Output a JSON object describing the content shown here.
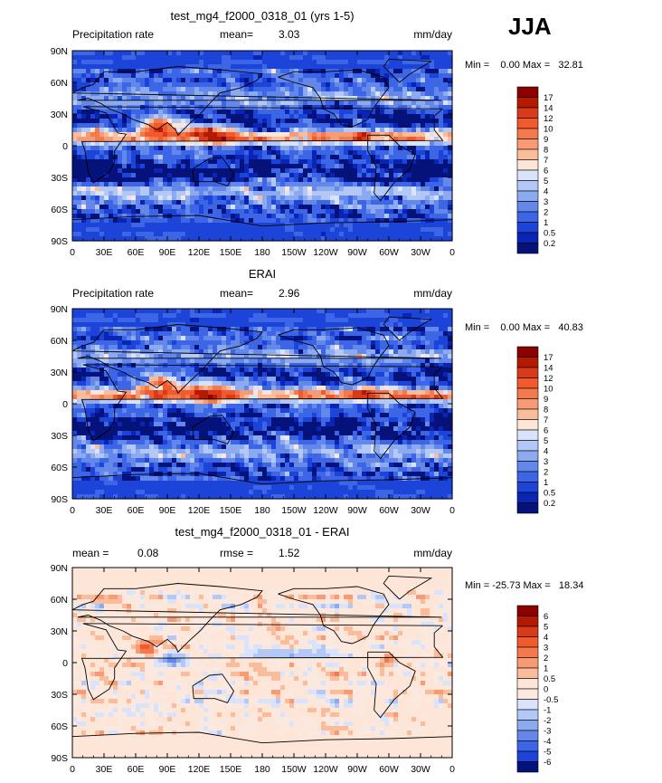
{
  "season": "JJA",
  "chart_data": [
    {
      "type": "heatmap",
      "title": "test_mg4_f2000_0318_01 (yrs 1-5)",
      "left_label": "Precipitation rate",
      "stat1_label": "mean=",
      "stat1_value": "3.03",
      "stat2_label": "",
      "stat2_value": "",
      "units": "mm/day",
      "range_text": "Min =    0.00 Max =   32.81",
      "min": 0.0,
      "max": 32.81,
      "x_ticks": [
        "0",
        "30E",
        "60E",
        "90E",
        "120E",
        "150E",
        "180",
        "150W",
        "120W",
        "90W",
        "60W",
        "30W",
        "0"
      ],
      "y_ticks": [
        "90N",
        "60N",
        "30N",
        "0",
        "30S",
        "60S",
        "90S"
      ],
      "levels": [
        "17",
        "14",
        "12",
        "10",
        "9",
        "8",
        "7",
        "6",
        "5",
        "4",
        "3",
        "2",
        "1",
        "0.5",
        "0.2"
      ],
      "colors": [
        "#8b0000",
        "#b31a00",
        "#d93a1a",
        "#f05a2d",
        "#f47a4e",
        "#f89a73",
        "#fbbc9c",
        "#fde6d7",
        "#d9e4fc",
        "#b3c8f6",
        "#8caaf0",
        "#6488ea",
        "#3d66e6",
        "#1c44d8",
        "#0a24b4",
        "#04127a"
      ]
    },
    {
      "type": "heatmap",
      "title": "ERAI",
      "left_label": "Precipitation rate",
      "stat1_label": "mean=",
      "stat1_value": "2.96",
      "stat2_label": "",
      "stat2_value": "",
      "units": "mm/day",
      "range_text": "Min =    0.00 Max =   40.83",
      "min": 0.0,
      "max": 40.83,
      "x_ticks": [
        "0",
        "30E",
        "60E",
        "90E",
        "120E",
        "150E",
        "180",
        "150W",
        "120W",
        "90W",
        "60W",
        "30W",
        "0"
      ],
      "y_ticks": [
        "90N",
        "60N",
        "30N",
        "0",
        "30S",
        "60S",
        "90S"
      ],
      "levels": [
        "17",
        "14",
        "12",
        "10",
        "9",
        "8",
        "7",
        "6",
        "5",
        "4",
        "3",
        "2",
        "1",
        "0.5",
        "0.2"
      ],
      "colors": [
        "#8b0000",
        "#b31a00",
        "#d93a1a",
        "#f05a2d",
        "#f47a4e",
        "#f89a73",
        "#fbbc9c",
        "#fde6d7",
        "#d9e4fc",
        "#b3c8f6",
        "#8caaf0",
        "#6488ea",
        "#3d66e6",
        "#1c44d8",
        "#0a24b4",
        "#04127a"
      ]
    },
    {
      "type": "heatmap",
      "title": "test_mg4_f2000_0318_01 - ERAI",
      "left_label": "",
      "stat1_label": "mean =",
      "stat1_value": "0.08",
      "stat2_label": "rmse =",
      "stat2_value": "1.52",
      "units": "mm/day",
      "range_text": "Min = -25.73 Max =   18.34",
      "min": -25.73,
      "max": 18.34,
      "x_ticks": [
        "0",
        "30E",
        "60E",
        "90E",
        "120E",
        "150E",
        "180",
        "150W",
        "120W",
        "90W",
        "60W",
        "30W",
        "0"
      ],
      "y_ticks": [
        "90N",
        "60N",
        "30N",
        "0",
        "30S",
        "60S",
        "90S"
      ],
      "levels": [
        "6",
        "5",
        "4",
        "3",
        "2",
        "1",
        "0.5",
        "0",
        "-0.5",
        "-1",
        "-2",
        "-3",
        "-4",
        "-5",
        "-6"
      ],
      "colors": [
        "#8b0000",
        "#b31a00",
        "#d93a1a",
        "#f05a2d",
        "#f47a4e",
        "#f89a73",
        "#fbbc9c",
        "#fde6d7",
        "#fbe9df",
        "#d9e4fc",
        "#b3c8f6",
        "#8caaf0",
        "#6488ea",
        "#3d66e6",
        "#1c44d8",
        "#04127a"
      ]
    }
  ]
}
